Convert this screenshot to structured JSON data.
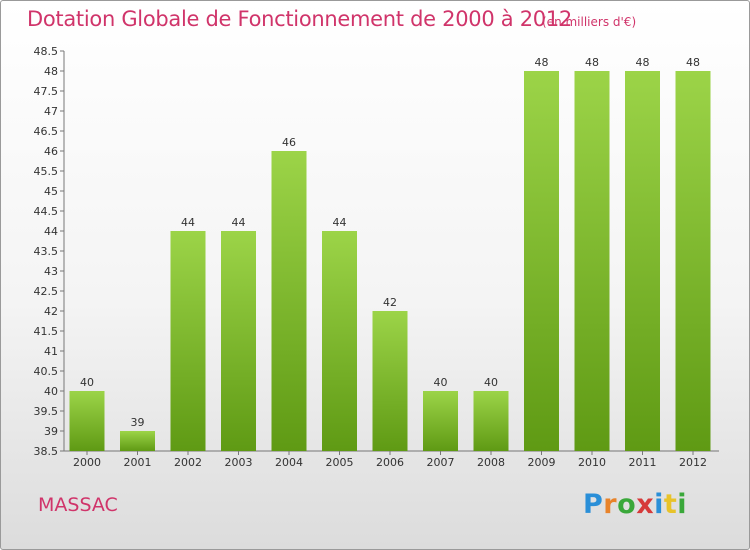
{
  "header": {
    "title": "Dotation Globale de Fonctionnement de 2000 à 2012",
    "subtitle": "(en milliers d'€)"
  },
  "footer": {
    "commune": "MASSAC",
    "logo_text": "Proxiti"
  },
  "colors": {
    "title": "#d0346a",
    "bar_top": "#9cd448",
    "bar_bottom": "#5f9a14",
    "text": "#333333"
  },
  "chart_data": {
    "type": "bar",
    "categories": [
      "2000",
      "2001",
      "2002",
      "2003",
      "2004",
      "2005",
      "2006",
      "2007",
      "2008",
      "2009",
      "2010",
      "2011",
      "2012"
    ],
    "values": [
      40,
      39,
      44,
      44,
      46,
      44,
      42,
      40,
      40,
      48,
      48,
      48,
      48
    ],
    "data_labels": [
      "40",
      "39",
      "44",
      "44",
      "46",
      "44",
      "42",
      "40",
      "40",
      "48",
      "48",
      "48",
      "48"
    ],
    "ylim": [
      38.5,
      48.5
    ],
    "yticks": [
      "38.5",
      "39",
      "39.5",
      "40",
      "40.5",
      "41",
      "41.5",
      "42",
      "42.5",
      "43",
      "43.5",
      "44",
      "44.5",
      "45",
      "45.5",
      "46",
      "46.5",
      "47",
      "47.5",
      "48",
      "48.5"
    ],
    "grid": false,
    "legend": "none"
  }
}
